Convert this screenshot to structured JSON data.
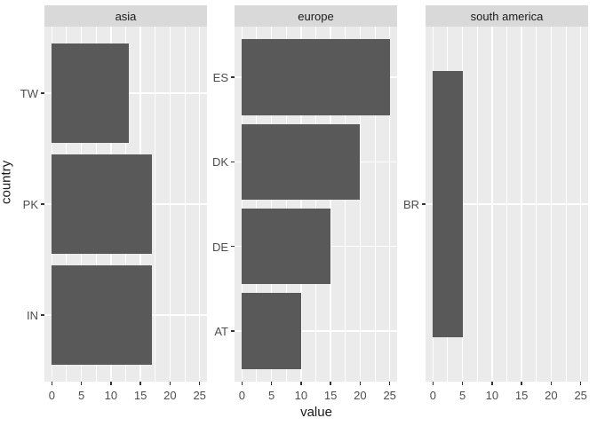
{
  "chart_data": {
    "type": "bar",
    "orientation": "horizontal",
    "xlabel": "value",
    "ylabel": "country",
    "x_ticks": [
      0,
      5,
      10,
      15,
      20,
      25
    ],
    "x_minor_ticks": [
      2.5,
      7.5,
      12.5,
      17.5,
      22.5
    ],
    "xlim": [
      -1.25,
      26.25
    ],
    "grid": true,
    "facets": [
      {
        "label": "asia",
        "categories": [
          "TW",
          "PK",
          "IN"
        ],
        "values": [
          13,
          17,
          17
        ]
      },
      {
        "label": "europe",
        "categories": [
          "ES",
          "DK",
          "DE",
          "AT"
        ],
        "values": [
          25,
          20,
          15,
          10
        ]
      },
      {
        "label": "south america",
        "categories": [
          "BR"
        ],
        "values": [
          5
        ]
      }
    ],
    "colors": {
      "bar": "#595959",
      "panel_bg": "#EBEBEB",
      "strip_bg": "#D9D9D9",
      "grid": "#FFFFFF",
      "axis_text": "#4D4D4D",
      "title_text": "#1A1A1A",
      "tick_mark": "#333333",
      "background": "#FFFFFF"
    }
  }
}
